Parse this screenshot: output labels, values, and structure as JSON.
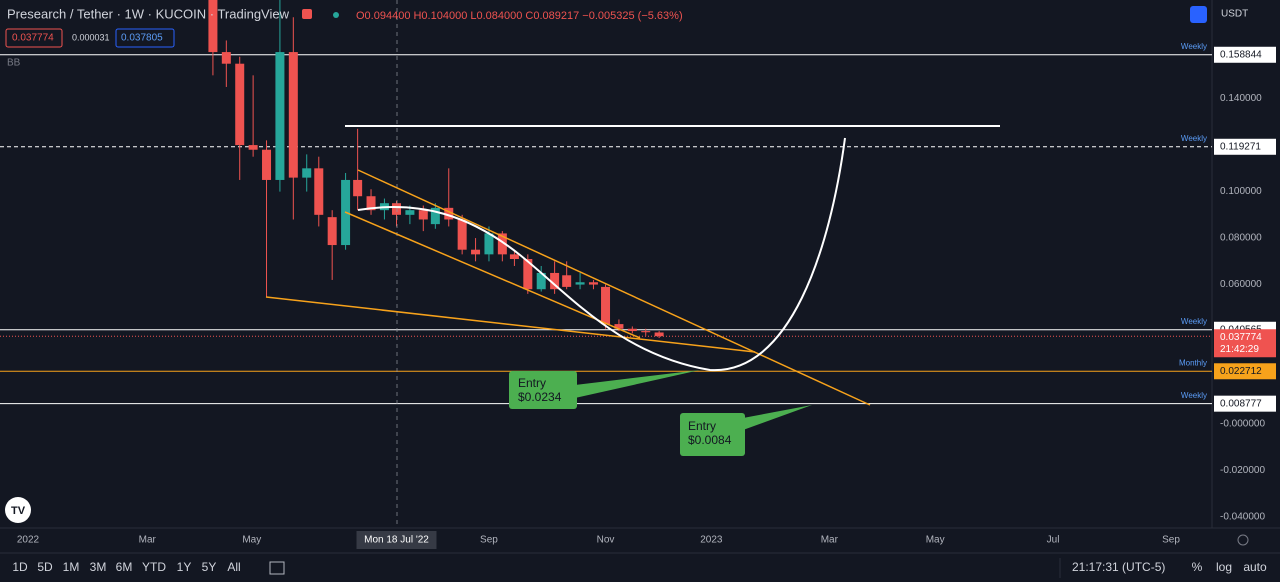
{
  "header": {
    "symbol": "Presearch / Tether · 1W · KUCOIN · TradingView",
    "ohlc": "O0.094400 H0.104000 L0.084000 C0.089217 −0.005325 (−5.63%)",
    "bid": "0.037774",
    "spread": "0.000031",
    "ask": "0.037805",
    "indicator": "BB",
    "currency": "USDT"
  },
  "chart_data": {
    "type": "candlestick",
    "up_color": "#26a69a",
    "down_color": "#ef5350",
    "x": [
      13.8,
      14.8,
      15.8,
      16.8,
      17.8,
      18.8,
      19.8,
      20.8,
      21.7,
      22.7,
      23.7,
      24.6,
      25.6,
      26.6,
      27.5,
      28.5,
      29.5,
      30.4,
      31.4,
      32.4,
      33.4,
      34.4,
      35.4,
      36.3,
      37.3,
      38.3,
      39.3,
      40.2,
      41.2,
      42.2,
      43.1,
      44.1,
      45.1,
      46.1,
      47.1
    ],
    "open": [
      0.185,
      0.16,
      0.155,
      0.12,
      0.118,
      0.105,
      0.16,
      0.106,
      0.11,
      0.089,
      0.077,
      0.105,
      0.098,
      0.092,
      0.095,
      0.09,
      0.092,
      0.086,
      0.093,
      0.088,
      0.075,
      0.073,
      0.082,
      0.073,
      0.071,
      0.058,
      0.065,
      0.064,
      0.06,
      0.061,
      0.059,
      0.043,
      0.041,
      0.04,
      0.0394
    ],
    "high": [
      0.19,
      0.165,
      0.158,
      0.15,
      0.122,
      0.2,
      0.175,
      0.116,
      0.115,
      0.092,
      0.108,
      0.127,
      0.101,
      0.097,
      0.096,
      0.094,
      0.094,
      0.095,
      0.11,
      0.09,
      0.08,
      0.085,
      0.083,
      0.075,
      0.073,
      0.068,
      0.07,
      0.07,
      0.065,
      0.062,
      0.06,
      0.045,
      0.042,
      0.041,
      0.04
    ],
    "low": [
      0.15,
      0.145,
      0.105,
      0.115,
      0.0546,
      0.1,
      0.088,
      0.1,
      0.085,
      0.062,
      0.075,
      0.092,
      0.09,
      0.088,
      0.085,
      0.086,
      0.083,
      0.084,
      0.085,
      0.073,
      0.07,
      0.07,
      0.07,
      0.068,
      0.056,
      0.057,
      0.056,
      0.058,
      0.058,
      0.058,
      0.041,
      0.04,
      0.039,
      0.038,
      0.037
    ],
    "close": [
      0.16,
      0.155,
      0.12,
      0.118,
      0.105,
      0.16,
      0.106,
      0.11,
      0.09,
      0.077,
      0.105,
      0.098,
      0.092,
      0.095,
      0.09,
      0.092,
      0.088,
      0.093,
      0.088,
      0.075,
      0.073,
      0.082,
      0.073,
      0.071,
      0.058,
      0.065,
      0.058,
      0.059,
      0.061,
      0.06,
      0.043,
      0.041,
      0.04,
      0.0395,
      0.0378
    ],
    "xlim": [
      -2.09,
      88.36
    ],
    "ylim": [
      -0.0447,
      0.1824
    ],
    "xticks": [
      {
        "value": 0,
        "label": "2022"
      },
      {
        "value": 8.9,
        "label": "Mar"
      },
      {
        "value": 16.7,
        "label": "May"
      },
      {
        "value": 27.5,
        "label": "Mon 18 Jul '22"
      },
      {
        "value": 34.4,
        "label": "Sep"
      },
      {
        "value": 43.1,
        "label": "Nov"
      },
      {
        "value": 51,
        "label": "2023"
      },
      {
        "value": 59.8,
        "label": "Mar"
      },
      {
        "value": 67.7,
        "label": "May"
      },
      {
        "value": 76.5,
        "label": "Jul"
      },
      {
        "value": 85.3,
        "label": "Sep"
      }
    ],
    "yticks": [
      {
        "value": 0.14,
        "label": "0.140000"
      },
      {
        "value": 0.1,
        "label": "0.100000"
      },
      {
        "value": 0.08,
        "label": "0.080000"
      },
      {
        "value": 0.06,
        "label": "0.060000"
      },
      {
        "value": 0,
        "label": "-0.000000"
      },
      {
        "value": -0.02,
        "label": "-0.020000"
      },
      {
        "value": -0.04,
        "label": "-0.040000"
      }
    ],
    "levels": [
      {
        "name": "Weekly",
        "value": 0.158844,
        "color": "#ffffff"
      },
      {
        "name": "Weekly",
        "value": 0.119271,
        "color": "#ffffff"
      },
      {
        "name": "Weekly",
        "value": 0.040565,
        "color": "#ffffff"
      },
      {
        "name": "Monthly",
        "value": 0.022712,
        "color": "#f7a21b"
      },
      {
        "name": "Weekly",
        "value": 0.008777,
        "color": "#ffffff"
      }
    ],
    "last_price": 0.037774,
    "countdown": "21:42:29",
    "annotations": [
      {
        "line1": "Entry",
        "line2": "$0.0234"
      },
      {
        "line1": "Entry",
        "line2": "$0.0084"
      }
    ]
  },
  "footer": {
    "ranges": [
      "1D",
      "5D",
      "1M",
      "3M",
      "6M",
      "YTD",
      "1Y",
      "5Y",
      "All"
    ],
    "clock": "21:17:31 (UTC-5)",
    "options": [
      "%",
      "log",
      "auto"
    ]
  }
}
